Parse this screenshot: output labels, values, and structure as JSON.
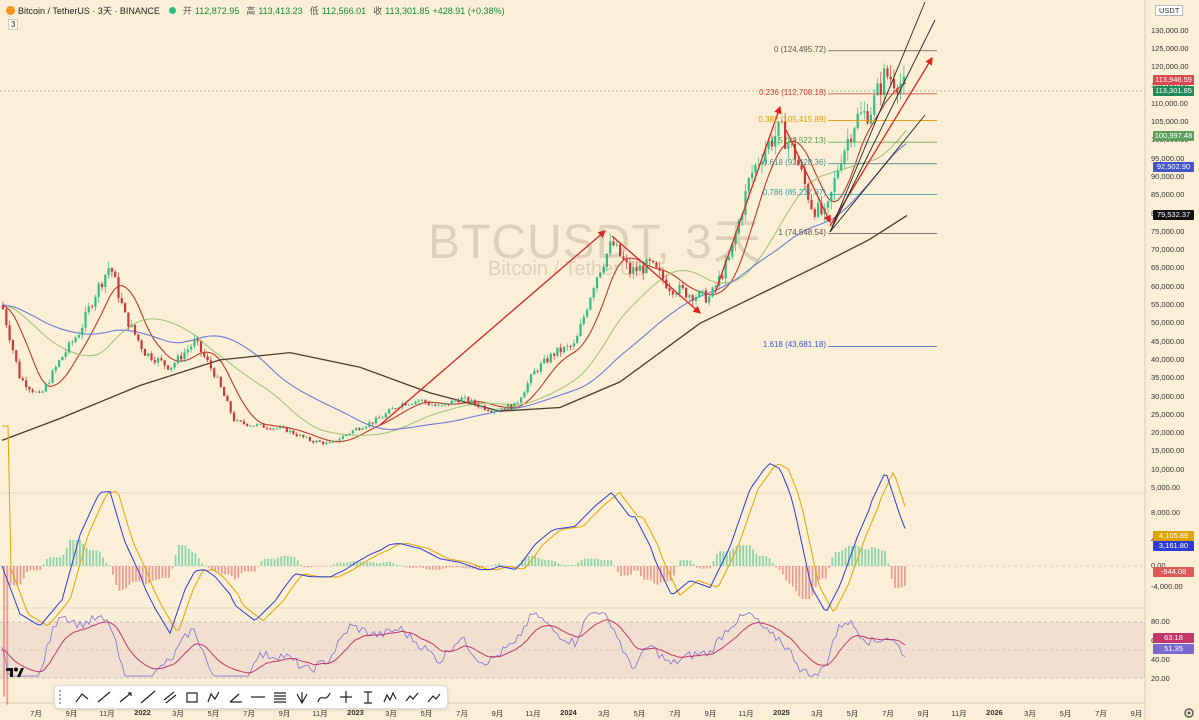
{
  "header": {
    "symbol": "Bitcoin / TetherUS · 3天 · BINANCE",
    "open_label": "开",
    "open": "112,872.95",
    "high_label": "高",
    "high": "113,413.23",
    "low_label": "低",
    "low": "112,566.01",
    "close_label": "收",
    "close": "113,301.85",
    "change": "+428.91 (+0.38%)",
    "indicator_count": "3"
  },
  "watermark": {
    "main": "BTCUSDT, 3天",
    "sub": "Bitcoin / TetherUS"
  },
  "currency": "USDT",
  "colors": {
    "background": "#fbf0d7",
    "up": "#2ebd85",
    "down": "#c83a3a",
    "arrow": "#e02424",
    "ema_short": "#c0392b",
    "ema_mid": "#a6c47a",
    "ema_long": "#6b7bd6",
    "ema_200": "#4a3c2e",
    "macd": "#2d3bd6",
    "signal": "#e2a400",
    "rsi": "#8a7ad6",
    "rsi_ma": "#c2386a"
  },
  "price_axis": {
    "labels": [
      "130,000.00",
      "125,000.00",
      "120,000.00",
      "115,000.00",
      "110,000.00",
      "105,000.00",
      "100,000.00",
      "95,000.00",
      "90,000.00",
      "85,000.00",
      "80,000.00",
      "75,000.00",
      "70,000.00",
      "65,000.00",
      "60,000.00",
      "55,000.00",
      "50,000.00",
      "45,000.00",
      "40,000.00",
      "35,000.00",
      "30,000.00",
      "25,000.00",
      "20,000.00",
      "15,000.00",
      "10,000.00",
      "5,000.00"
    ]
  },
  "price_badges": [
    {
      "text": "113,946.59",
      "color": "#d9474f"
    },
    {
      "text": "113,301.85",
      "color": "#1f8a5a"
    },
    {
      "text": "100,997.48",
      "color": "#5aa05a"
    },
    {
      "text": "92,502.90",
      "color": "#4455cc"
    },
    {
      "text": "79,532.37",
      "color": "#111111"
    }
  ],
  "macd_axis": {
    "labels": [
      "8,000.00",
      "4,000.00",
      "0.00",
      "-4,000.00"
    ],
    "badges": [
      {
        "text": "4,105.89",
        "color": "#e2a400"
      },
      {
        "text": "3,161.80",
        "color": "#2d3bd6"
      },
      {
        "text": "-944.08",
        "color": "#e05a5a"
      }
    ]
  },
  "rsi_axis": {
    "labels": [
      "80.00",
      "60.00",
      "40.00",
      "20.00"
    ],
    "badges": [
      {
        "text": "63.18",
        "color": "#c2386a"
      },
      {
        "text": "51.35",
        "color": "#7a6ad0"
      }
    ]
  },
  "x_axis": [
    "7月",
    "9月",
    "11月",
    "2022",
    "3月",
    "5月",
    "7月",
    "9月",
    "11月",
    "2023",
    "3月",
    "5月",
    "7月",
    "9月",
    "11月",
    "2024",
    "3月",
    "5月",
    "7月",
    "9月",
    "11月",
    "2025",
    "3月",
    "5月",
    "7月",
    "9月",
    "11月",
    "2026",
    "3月",
    "5月",
    "7月",
    "9月"
  ],
  "fib_levels": [
    {
      "label": "0 (124,495.72)",
      "color": "#555555"
    },
    {
      "label": "0.236 (112,708.18)",
      "color": "#d23a3a"
    },
    {
      "label": "0.382 (105,415.89)",
      "color": "#e09a00"
    },
    {
      "label": "0.5 (99,522.13)",
      "color": "#4a9a4a"
    },
    {
      "label": "0.618 (93,628.36)",
      "color": "#4a8a8a"
    },
    {
      "label": "0.786 (85,237.87)",
      "color": "#2aa0a0"
    },
    {
      "label": "1 (74,548.54)",
      "color": "#555555"
    },
    {
      "label": "1.618 (43,681.18)",
      "color": "#3355cc"
    }
  ],
  "toolbar": {
    "tools": [
      "trend-line",
      "ray",
      "arrow",
      "extended-line",
      "parallel-channel",
      "rectangle",
      "path",
      "angle",
      "horizontal-line",
      "fib-retracement",
      "pitchfork",
      "brush",
      "crosshair",
      "long-position",
      "pattern",
      "forecast",
      "projection"
    ]
  },
  "chart_data": {
    "type": "line",
    "title": "BTCUSDT, 3天",
    "x": [
      "7月",
      "9月",
      "11月",
      "2022",
      "3月",
      "5月",
      "7月",
      "9月",
      "11月",
      "2023",
      "3月",
      "5月",
      "7月",
      "9月",
      "11月",
      "2024",
      "3月",
      "5月",
      "7月",
      "9月",
      "11月",
      "2025",
      "3月",
      "5月",
      "7月",
      "9月"
    ],
    "series": [
      {
        "name": "BTCUSDT",
        "values": [
          34000,
          45000,
          62000,
          47000,
          42000,
          30000,
          21000,
          20000,
          16500,
          23000,
          28000,
          27000,
          30500,
          26500,
          36000,
          42000,
          71000,
          68000,
          66000,
          63000,
          90000,
          97000,
          82000,
          105000,
          118000,
          113301
        ]
      }
    ],
    "ylim": [
      5000,
      130000
    ],
    "last_price": 113301.85
  }
}
